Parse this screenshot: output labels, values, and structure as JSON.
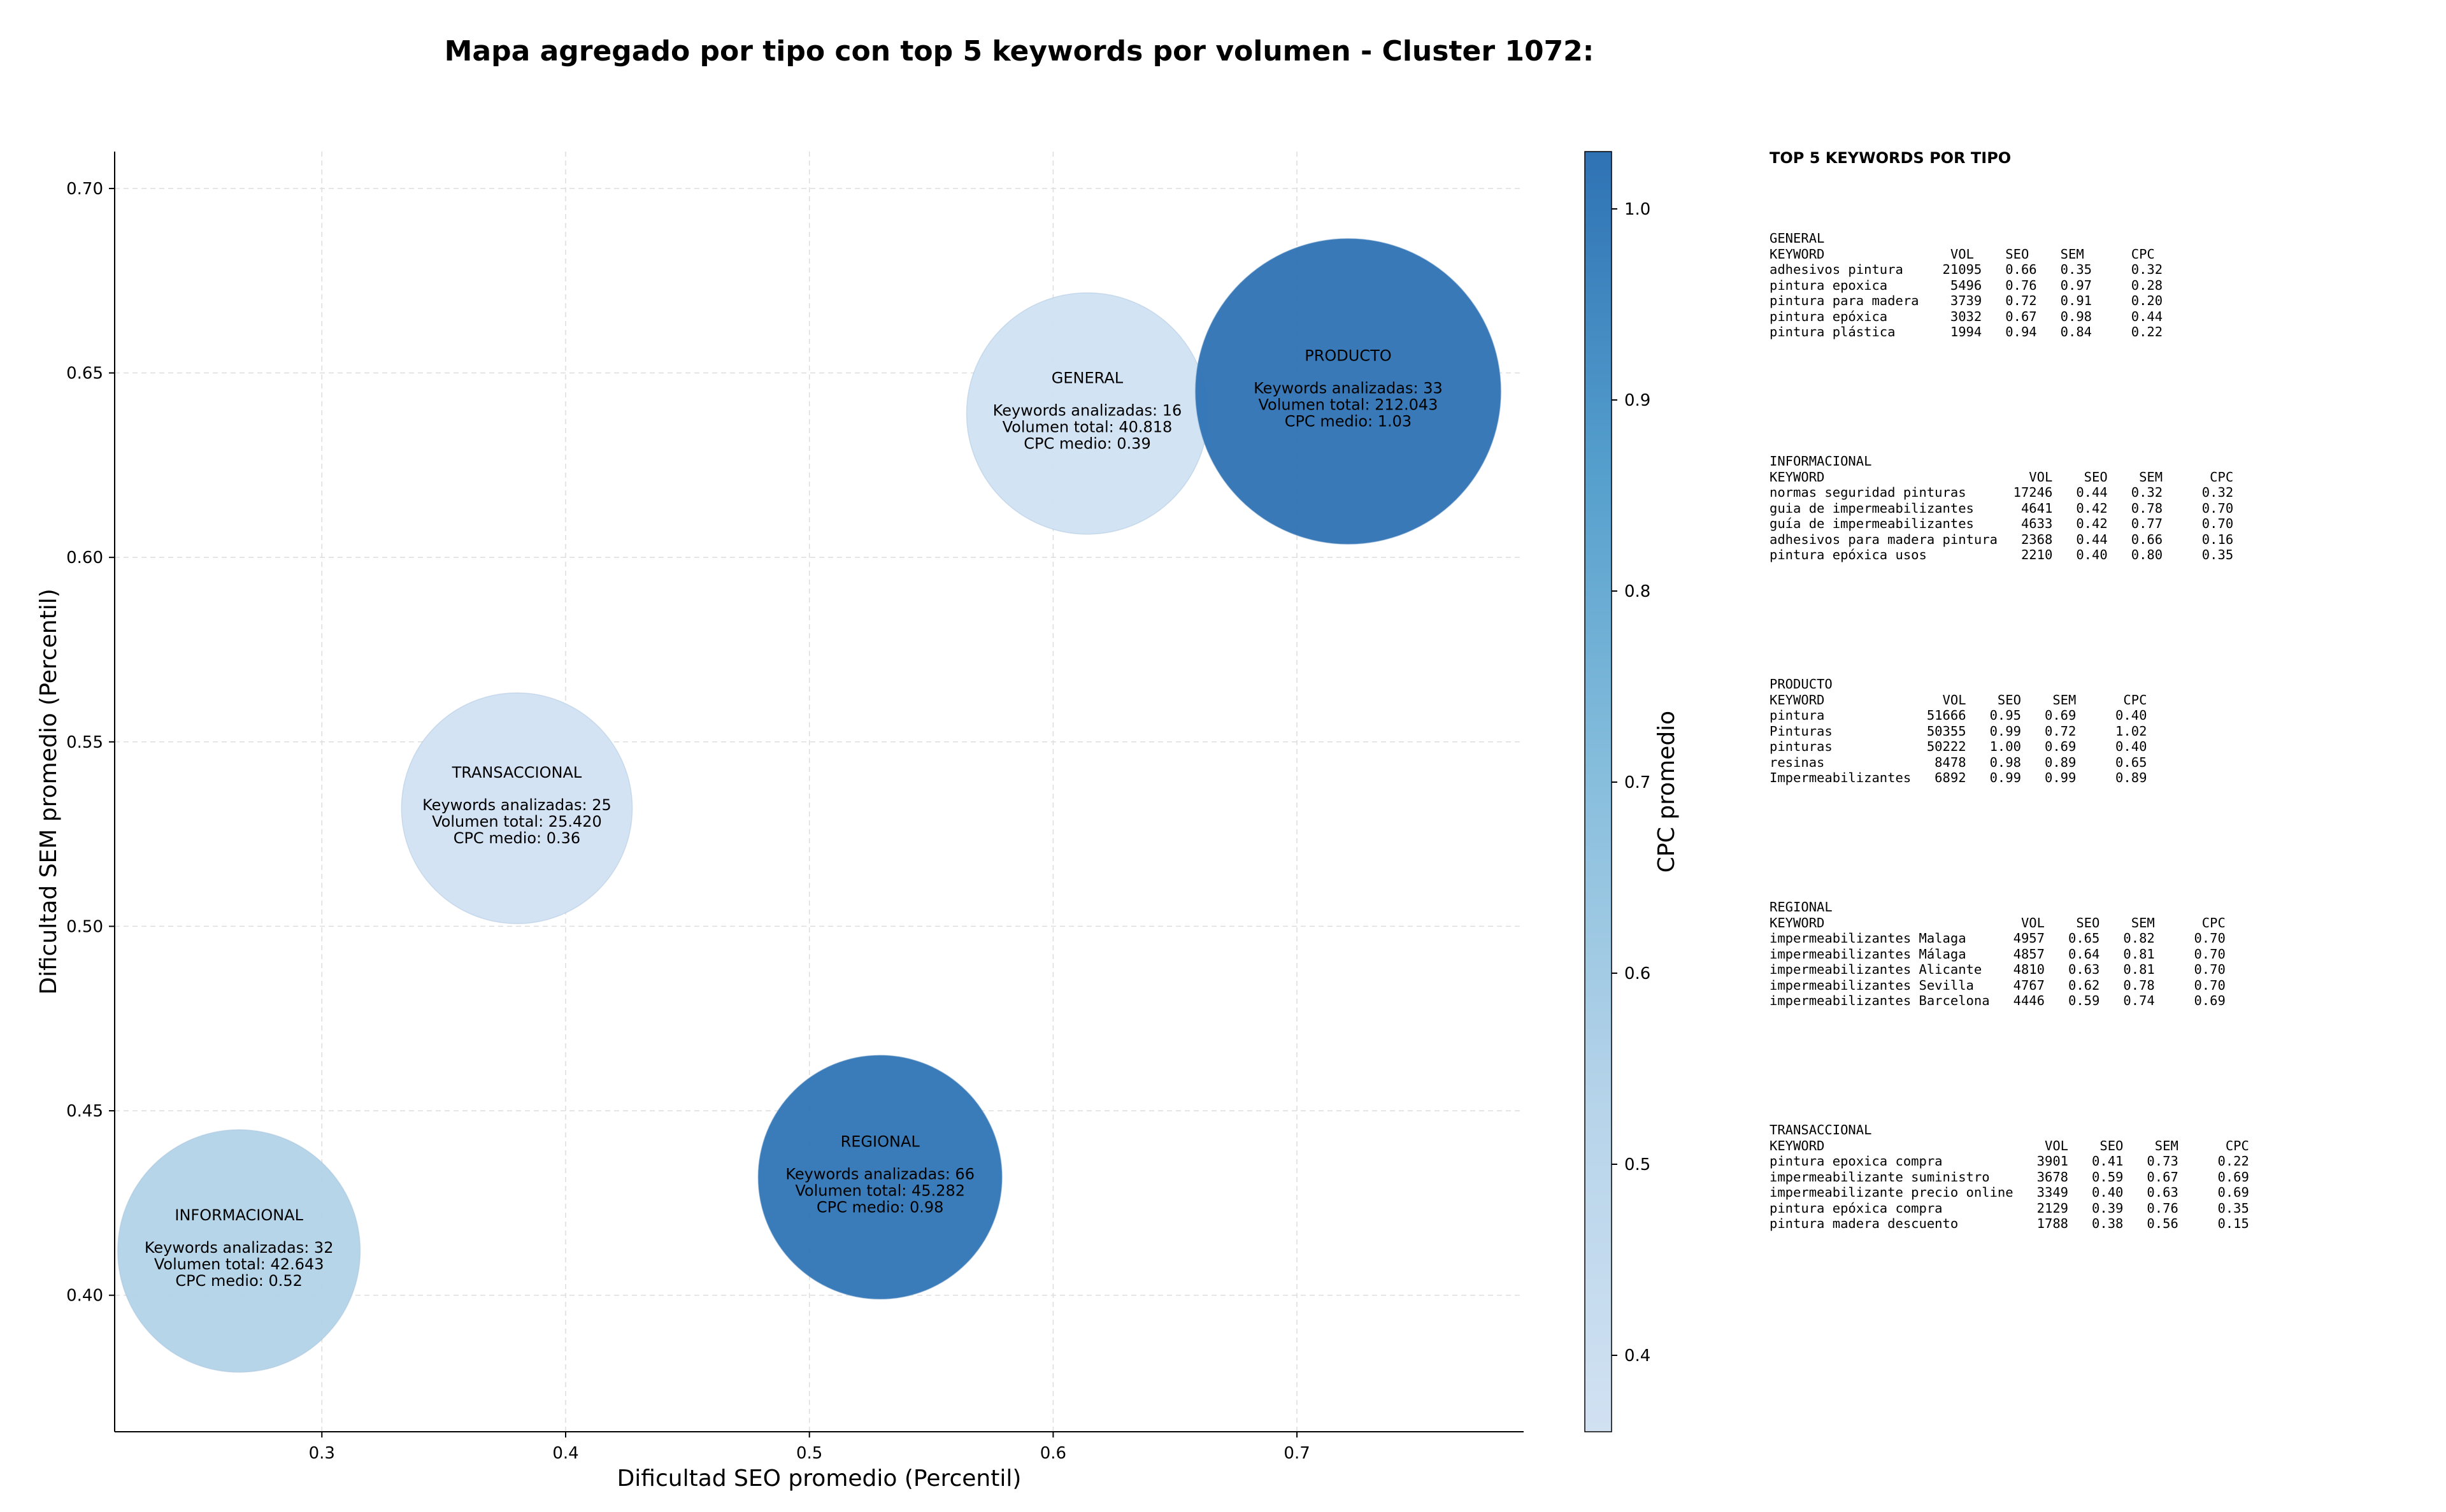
{
  "chart_data": {
    "type": "scatter",
    "title": "Mapa agregado por tipo con top 5 keywords por volumen - Cluster 1072:",
    "xlabel": "Dificultad SEO promedio (Percentil)",
    "ylabel": "Dificultad SEM promedio (Percentil)",
    "xlim": [
      0.215,
      0.793
    ],
    "ylim": [
      0.363,
      0.71
    ],
    "xticks": [
      "0.3",
      "0.4",
      "0.5",
      "0.6",
      "0.7"
    ],
    "xtick_values": [
      0.3,
      0.4,
      0.5,
      0.6,
      0.7
    ],
    "yticks": [
      "0.40",
      "0.45",
      "0.50",
      "0.55",
      "0.60",
      "0.65",
      "0.70"
    ],
    "ytick_values": [
      0.4,
      0.45,
      0.5,
      0.55,
      0.6,
      0.65,
      0.7
    ],
    "grid": true,
    "colorbar": {
      "label": "CPC promedio",
      "range": [
        0.36,
        1.03
      ],
      "ticks": [
        "0.4",
        "0.5",
        "0.6",
        "0.7",
        "0.8",
        "0.9",
        "1.0"
      ],
      "tick_values": [
        0.4,
        0.5,
        0.6,
        0.7,
        0.8,
        0.9,
        1.0
      ],
      "color_low": "#d1e1f2",
      "color_high": "#2e72b4"
    },
    "bubbles": [
      {
        "name": "GENERAL",
        "x": 0.614,
        "y": 0.639,
        "keywords": 16,
        "volume": 40818,
        "cpc": 0.39,
        "color": "#d0e1f2",
        "line1": "Keywords analizadas: 16",
        "line2": "Volumen total: 40.818",
        "line3": "CPC medio: 0.39"
      },
      {
        "name": "PRODUCTO",
        "x": 0.721,
        "y": 0.645,
        "keywords": 33,
        "volume": 212043,
        "cpc": 1.03,
        "color": "#2e72b4",
        "line1": "Keywords analizadas: 33",
        "line2": "Volumen total: 212.043",
        "line3": "CPC medio: 1.03"
      },
      {
        "name": "TRANSACCIONAL",
        "x": 0.38,
        "y": 0.532,
        "keywords": 25,
        "volume": 25420,
        "cpc": 0.36,
        "color": "#d2e2f3",
        "line1": "Keywords analizadas: 25",
        "line2": "Volumen total: 25.420",
        "line3": "CPC medio: 0.36"
      },
      {
        "name": "INFORMACIONAL",
        "x": 0.266,
        "y": 0.412,
        "keywords": 32,
        "volume": 42643,
        "cpc": 0.52,
        "color": "#b3d3e8",
        "line1": "Keywords analizadas: 32",
        "line2": "Volumen total: 42.643",
        "line3": "CPC medio: 0.52"
      },
      {
        "name": "REGIONAL",
        "x": 0.529,
        "y": 0.432,
        "keywords": 66,
        "volume": 45282,
        "cpc": 0.98,
        "color": "#2f74b5",
        "line1": "Keywords analizadas: 66",
        "line2": "Volumen total: 45.282",
        "line3": "CPC medio: 0.98"
      }
    ]
  },
  "side_panel": {
    "title": "TOP 5 KEYWORDS POR TIPO",
    "groups": [
      {
        "name": "GENERAL",
        "header": "KEYWORD                VOL    SEO    SEM      CPC",
        "rows": [
          "adhesivos pintura     21095   0.66   0.35     0.32",
          "pintura epoxica        5496   0.76   0.97     0.28",
          "pintura para madera    3739   0.72   0.91     0.20",
          "pintura epóxica        3032   0.67   0.98     0.44",
          "pintura plástica       1994   0.94   0.84     0.22"
        ]
      },
      {
        "name": "INFORMACIONAL",
        "header": "KEYWORD                          VOL    SEO    SEM      CPC",
        "rows": [
          "normas seguridad pinturas      17246   0.44   0.32     0.32",
          "guia de impermeabilizantes      4641   0.42   0.78     0.70",
          "guía de impermeabilizantes      4633   0.42   0.77     0.70",
          "adhesivos para madera pintura   2368   0.44   0.66     0.16",
          "pintura epóxica usos            2210   0.40   0.80     0.35"
        ]
      },
      {
        "name": "PRODUCTO",
        "header": "KEYWORD               VOL    SEO    SEM      CPC",
        "rows": [
          "pintura             51666   0.95   0.69     0.40",
          "Pinturas            50355   0.99   0.72     1.02",
          "pinturas            50222   1.00   0.69     0.40",
          "resinas              8478   0.98   0.89     0.65",
          "Impermeabilizantes   6892   0.99   0.99     0.89"
        ]
      },
      {
        "name": "REGIONAL",
        "header": "KEYWORD                         VOL    SEO    SEM      CPC",
        "rows": [
          "impermeabilizantes Malaga      4957   0.65   0.82     0.70",
          "impermeabilizantes Málaga      4857   0.64   0.81     0.70",
          "impermeabilizantes Alicante    4810   0.63   0.81     0.70",
          "impermeabilizantes Sevilla     4767   0.62   0.78     0.70",
          "impermeabilizantes Barcelona   4446   0.59   0.74     0.69"
        ]
      },
      {
        "name": "TRANSACCIONAL",
        "header": "KEYWORD                            VOL    SEO    SEM      CPC",
        "rows": [
          "pintura epoxica compra            3901   0.41   0.73     0.22",
          "impermeabilizante suministro      3678   0.59   0.67     0.69",
          "impermeabilizante precio online   3349   0.40   0.63     0.69",
          "pintura epóxica compra            2129   0.39   0.76     0.35",
          "pintura madera descuento          1788   0.38   0.56     0.15"
        ]
      }
    ]
  }
}
